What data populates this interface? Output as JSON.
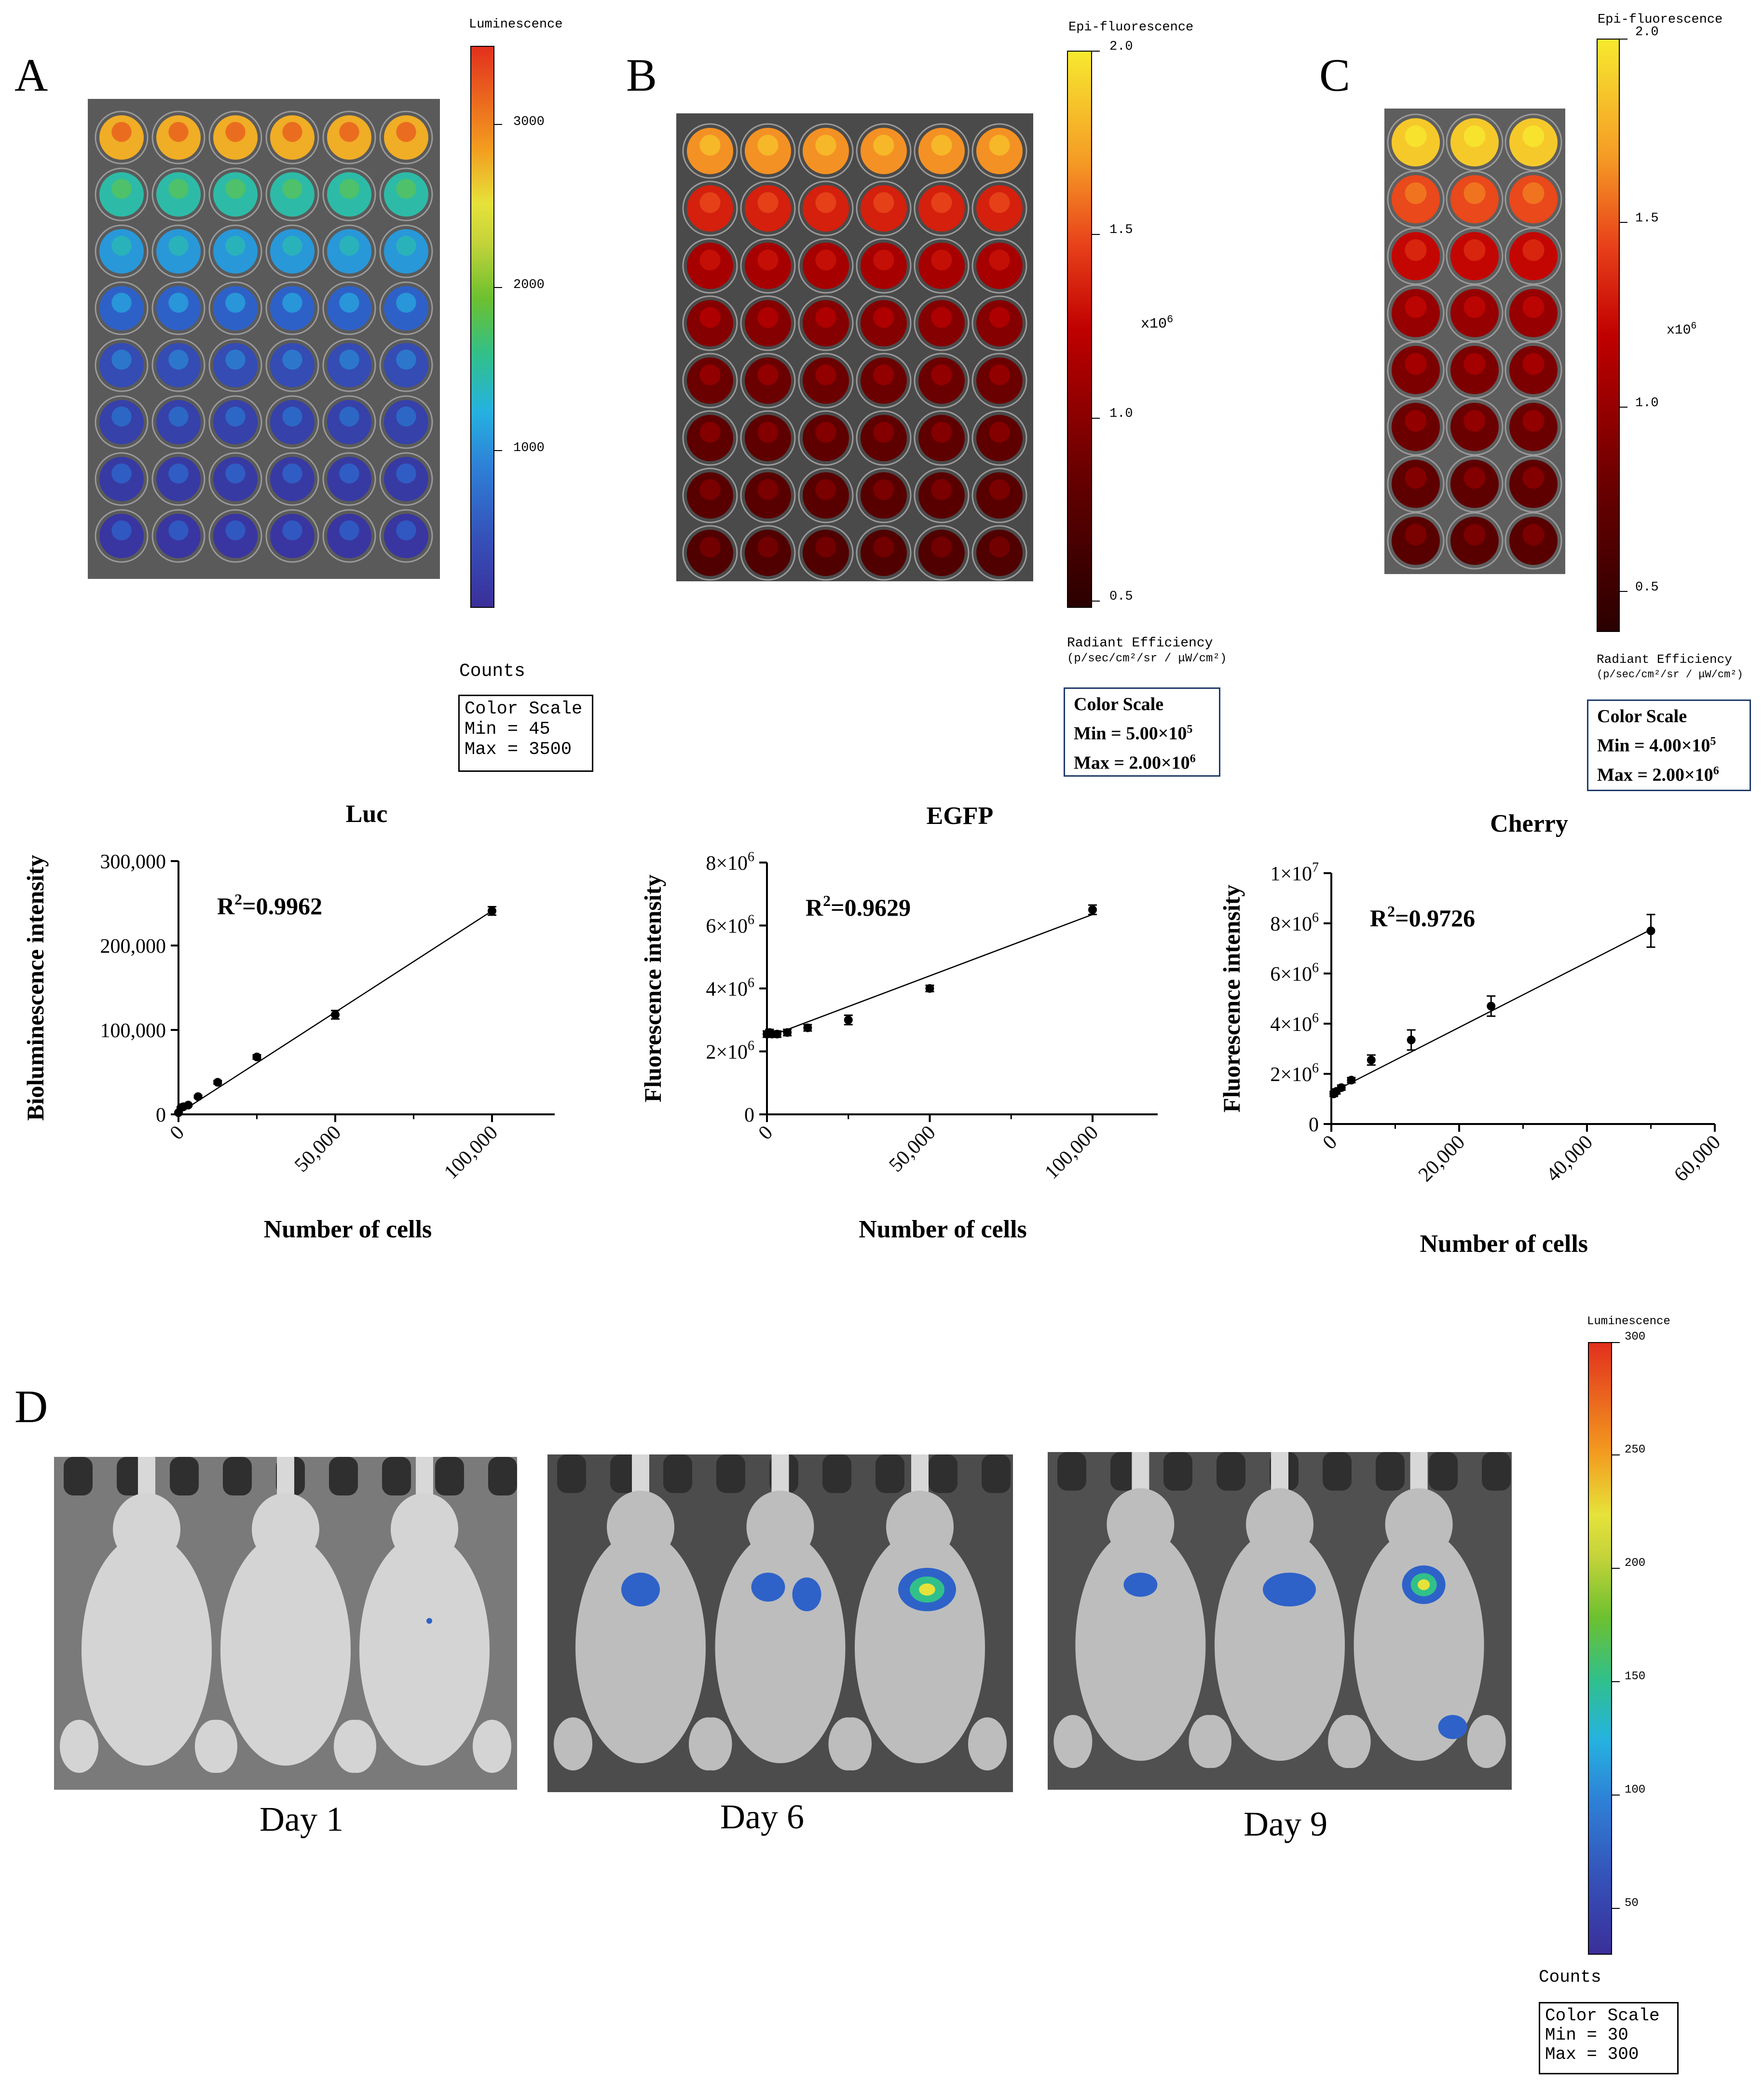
{
  "panels": {
    "a": "A",
    "b": "B",
    "c": "C",
    "d": "D"
  },
  "scale_a": {
    "title": "Luminescence",
    "ticks": [
      "3000",
      "2000",
      "1000"
    ],
    "units": "Counts",
    "box": {
      "title": "Color Scale",
      "min": "Min = 45",
      "max": "Max = 3500"
    }
  },
  "scale_b": {
    "title": "Epi-fluorescence",
    "ticks": [
      "2.0",
      "1.5",
      "1.0",
      "0.5"
    ],
    "multiplier": "x10",
    "multiplier_exp": "6",
    "units_line1": "Radiant Efficiency",
    "units_line2": "(p/sec/cm²/sr / μW/cm²)",
    "box": {
      "title": "Color Scale",
      "min": "Min = 5.00×10",
      "min_exp": "5",
      "max": "Max = 2.00×10",
      "max_exp": "6"
    }
  },
  "scale_c": {
    "title": "Epi-fluorescence",
    "ticks": [
      "2.0",
      "1.5",
      "1.0",
      "0.5"
    ],
    "multiplier": "x10",
    "multiplier_exp": "6",
    "units_line1": "Radiant Efficiency",
    "units_line2": "(p/sec/cm²/sr / μW/cm²)",
    "box": {
      "title": "Color Scale",
      "min": "Min = 4.00×10",
      "min_exp": "5",
      "max": "Max = 2.00×10",
      "max_exp": "6"
    }
  },
  "scale_d": {
    "title": "Luminescence",
    "ticks": [
      "300",
      "250",
      "200",
      "150",
      "100",
      "50"
    ],
    "units": "Counts",
    "box": {
      "title": "Color Scale",
      "min": "Min = 30",
      "max": "Max = 300"
    }
  },
  "days": [
    "Day 1",
    "Day 6",
    "Day 9"
  ],
  "colors": {
    "axis": "#000000",
    "lum_scale": [
      "#3b2f9a",
      "#2e62c9",
      "#25b2e0",
      "#31c08a",
      "#7ac52c",
      "#e6e23a",
      "#f39b1f",
      "#e2301d"
    ],
    "fluor_scale": [
      "#2a0000",
      "#6b0000",
      "#c00000",
      "#e8401a",
      "#f59a25",
      "#f7e92f"
    ]
  },
  "chart_data": [
    {
      "type": "scatter",
      "title": "Luc",
      "xlabel": "Number of cells",
      "ylabel": "Bioluminescence intensity",
      "annotation": "R",
      "annotation_exp": "2",
      "annotation_value": "=0.9962",
      "xlim": [
        0,
        120000
      ],
      "ylim": [
        0,
        300000
      ],
      "xticks": [
        0,
        50000,
        100000
      ],
      "xtick_labels": [
        "0",
        "50,000",
        "100,000"
      ],
      "yticks": [
        0,
        100000,
        200000,
        300000
      ],
      "ytick_labels": [
        "0",
        "100,000",
        "200,000",
        "300,000"
      ],
      "x": [
        0,
        781,
        1563,
        3125,
        6250,
        12500,
        25000,
        50000,
        100000
      ],
      "y": [
        2000,
        8000,
        9000,
        11000,
        21000,
        38000,
        68000,
        118000,
        241000
      ],
      "err": [
        500,
        800,
        800,
        1000,
        1500,
        2000,
        2500,
        5000,
        5000
      ],
      "fit": [
        [
          0,
          1000
        ],
        [
          100000,
          241000
        ]
      ]
    },
    {
      "type": "scatter",
      "title": "EGFP",
      "xlabel": "Number of cells",
      "ylabel": "Fluorescence intensity",
      "annotation": "R",
      "annotation_exp": "2",
      "annotation_value": "=0.9629",
      "xlim": [
        0,
        120000
      ],
      "ylim": [
        0,
        8000000
      ],
      "xticks": [
        0,
        50000,
        100000
      ],
      "xtick_labels": [
        "0",
        "50,000",
        "100,000"
      ],
      "yticks": [
        0,
        2000000,
        4000000,
        6000000,
        8000000
      ],
      "ytick_labels": [
        "0",
        "2×10",
        "4×10",
        "6×10",
        "8×10"
      ],
      "ytick_exp": [
        "",
        "6",
        "6",
        "6",
        "6"
      ],
      "x": [
        0,
        781,
        1563,
        3125,
        6250,
        12500,
        25000,
        50000,
        100000
      ],
      "y": [
        2550000,
        2600000,
        2550000,
        2550000,
        2600000,
        2750000,
        3000000,
        4000000,
        6500000
      ],
      "err": [
        100000,
        100000,
        100000,
        100000,
        100000,
        100000,
        150000,
        100000,
        150000
      ],
      "fit": [
        [
          0,
          2450000
        ],
        [
          100000,
          6350000
        ]
      ]
    },
    {
      "type": "scatter",
      "title": "Cherry",
      "xlabel": "Number of cells",
      "ylabel": "Fluorescence intensity",
      "annotation": "R",
      "annotation_exp": "2",
      "annotation_value": "=0.9726",
      "xlim": [
        0,
        60000
      ],
      "ylim": [
        0,
        10000000
      ],
      "xticks": [
        0,
        20000,
        40000,
        60000
      ],
      "xtick_labels": [
        "0",
        "20,000",
        "40,000",
        "60,000"
      ],
      "yticks": [
        0,
        2000000,
        4000000,
        6000000,
        8000000,
        10000000
      ],
      "ytick_labels": [
        "0",
        "2×10",
        "4×10",
        "6×10",
        "8×10",
        "1×10"
      ],
      "ytick_exp": [
        "",
        "6",
        "6",
        "6",
        "6",
        "7"
      ],
      "x": [
        390,
        781,
        1563,
        3125,
        6250,
        12500,
        25000,
        50000
      ],
      "y": [
        1200000,
        1300000,
        1450000,
        1750000,
        2550000,
        3350000,
        4700000,
        7700000
      ],
      "err": [
        100000,
        100000,
        100000,
        100000,
        200000,
        400000,
        400000,
        650000
      ],
      "fit": [
        [
          0,
          1250000
        ],
        [
          50000,
          7750000
        ]
      ]
    }
  ]
}
